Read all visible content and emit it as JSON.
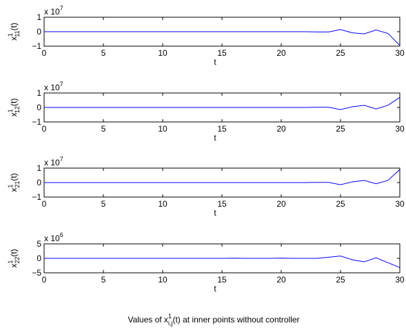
{
  "caption": {
    "prefix": "Values of x",
    "sup": "1",
    "sub": "i,j",
    "suffix": "(t) at inner points without controller"
  },
  "colors": {
    "line": "#0000ff",
    "axes": "#000000"
  },
  "chart_data": [
    {
      "type": "line",
      "multiplier_base": "x 10",
      "multiplier_exp": "7",
      "ylabel": {
        "base": "x",
        "sup": "1",
        "sub": "11",
        "suffix": "(t)"
      },
      "xlabel": "t",
      "xlim": [
        0,
        30
      ],
      "ylim": [
        -1,
        1
      ],
      "xticks": [
        "0",
        "5",
        "10",
        "15",
        "20",
        "25",
        "30"
      ],
      "yticks": [
        "-1",
        "0",
        "1"
      ],
      "ytick_values": [
        -1,
        0,
        1
      ],
      "grid": false,
      "series": [
        {
          "x": [
            0,
            1,
            2,
            3,
            4,
            5,
            6,
            7,
            8,
            9,
            10,
            11,
            12,
            13,
            14,
            15,
            16,
            17,
            18,
            19,
            20,
            21,
            22,
            23,
            24,
            25,
            26,
            27,
            28,
            29,
            30
          ],
          "y": [
            0,
            0,
            0,
            0,
            0,
            0,
            0,
            0,
            0,
            0,
            0,
            0,
            0,
            0,
            0,
            0,
            0,
            0,
            0,
            0,
            0,
            0,
            0,
            -0.02,
            -0.02,
            0.15,
            -0.08,
            -0.15,
            0.12,
            -0.12,
            -0.95
          ]
        }
      ]
    },
    {
      "type": "line",
      "multiplier_base": "x 10",
      "multiplier_exp": "7",
      "ylabel": {
        "base": "x",
        "sup": "1",
        "sub": "12",
        "suffix": "(t)"
      },
      "xlabel": "t",
      "xlim": [
        0,
        30
      ],
      "ylim": [
        -1,
        1
      ],
      "xticks": [
        "0",
        "5",
        "10",
        "15",
        "20",
        "25",
        "30"
      ],
      "yticks": [
        "-1",
        "0",
        "1"
      ],
      "ytick_values": [
        -1,
        0,
        1
      ],
      "grid": false,
      "series": [
        {
          "x": [
            0,
            1,
            2,
            3,
            4,
            5,
            6,
            7,
            8,
            9,
            10,
            11,
            12,
            13,
            14,
            15,
            16,
            17,
            18,
            19,
            20,
            21,
            22,
            23,
            24,
            25,
            26,
            27,
            28,
            29,
            30
          ],
          "y": [
            0,
            0,
            0,
            0,
            0,
            0,
            0,
            0,
            0,
            0,
            0,
            0,
            0,
            0,
            0,
            0,
            0,
            0,
            0,
            0,
            0,
            0,
            0,
            0.02,
            0.02,
            -0.15,
            0.05,
            0.15,
            -0.1,
            0.15,
            0.7
          ]
        }
      ]
    },
    {
      "type": "line",
      "multiplier_base": "x 10",
      "multiplier_exp": "7",
      "ylabel": {
        "base": "x",
        "sup": "1",
        "sub": "21",
        "suffix": "(t)"
      },
      "xlabel": "t",
      "xlim": [
        0,
        30
      ],
      "ylim": [
        -1,
        1
      ],
      "xticks": [
        "0",
        "5",
        "10",
        "15",
        "20",
        "25",
        "30"
      ],
      "yticks": [
        "-1",
        "0",
        "1"
      ],
      "ytick_values": [
        -1,
        0,
        1
      ],
      "grid": false,
      "series": [
        {
          "x": [
            0,
            1,
            2,
            3,
            4,
            5,
            6,
            7,
            8,
            9,
            10,
            11,
            12,
            13,
            14,
            15,
            16,
            17,
            18,
            19,
            20,
            21,
            22,
            23,
            24,
            25,
            26,
            27,
            28,
            29,
            30
          ],
          "y": [
            0,
            0,
            0,
            0,
            0,
            0,
            0,
            0,
            0,
            0,
            0,
            0,
            0,
            0,
            0,
            0,
            0,
            0,
            0,
            0,
            0,
            0,
            0,
            0.01,
            0.01,
            -0.15,
            0.05,
            0.15,
            -0.08,
            0.15,
            0.9
          ]
        }
      ]
    },
    {
      "type": "line",
      "multiplier_base": "x 10",
      "multiplier_exp": "6",
      "ylabel": {
        "base": "x",
        "sup": "1",
        "sub": "22",
        "suffix": "(t)"
      },
      "xlabel": "t",
      "xlim": [
        0,
        30
      ],
      "ylim": [
        -5,
        5
      ],
      "xticks": [
        "0",
        "5",
        "10",
        "15",
        "20",
        "25",
        "30"
      ],
      "yticks": [
        "-5",
        "0",
        "5"
      ],
      "ytick_values": [
        -5,
        0,
        5
      ],
      "grid": false,
      "series": [
        {
          "x": [
            0,
            1,
            2,
            3,
            4,
            5,
            6,
            7,
            8,
            9,
            10,
            11,
            12,
            13,
            14,
            15,
            16,
            17,
            18,
            19,
            20,
            21,
            22,
            23,
            24,
            25,
            26,
            27,
            28,
            29,
            30
          ],
          "y": [
            0,
            0,
            0,
            0,
            0,
            0,
            0,
            0,
            0,
            0,
            0,
            0,
            0,
            0,
            0,
            0,
            0.05,
            0,
            0,
            0,
            0.1,
            0,
            0,
            0,
            0.4,
            0.8,
            -0.5,
            -1.2,
            0.2,
            -1.5,
            -3.2
          ]
        }
      ]
    }
  ]
}
